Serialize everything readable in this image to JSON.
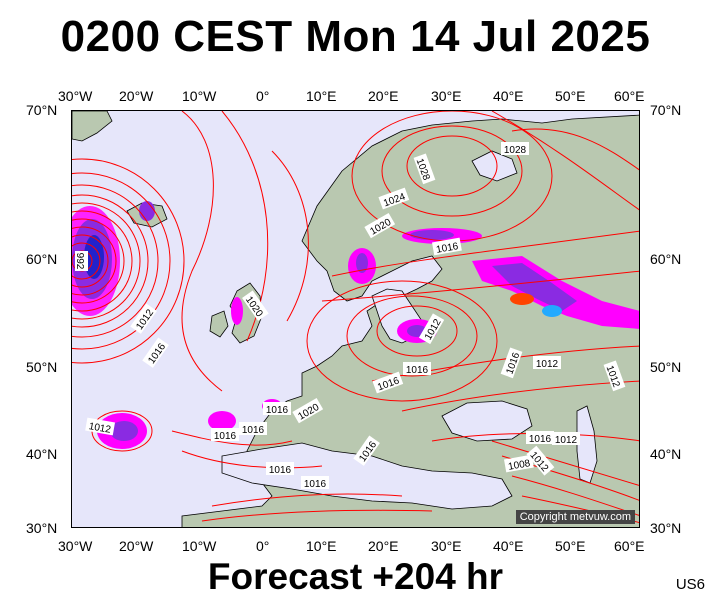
{
  "title": "0200 CEST Mon 14 Jul 2025",
  "footer": "Forecast +204 hr",
  "model_code": "US6",
  "copyright": "Copyright metvuw.com",
  "colors": {
    "sea": "#e6e6fa",
    "land": "#b9c8b0",
    "isobar": "#ff0000",
    "coast": "#000000",
    "rain_light": "#ff00ff",
    "rain_mid": "#8a2be2",
    "rain_heavy": "#2222cc"
  },
  "axes": {
    "lon_labels": [
      "30°W",
      "20°W",
      "10°W",
      "0°",
      "10°E",
      "20°E",
      "30°E",
      "40°E",
      "50°E",
      "60°E"
    ],
    "lat_labels": [
      "70°N",
      "60°N",
      "50°N",
      "40°N",
      "30°N"
    ]
  },
  "isobar_labels": [
    {
      "text": "1028"
    },
    {
      "text": "1028"
    },
    {
      "text": "1024"
    },
    {
      "text": "1020"
    },
    {
      "text": "1016"
    },
    {
      "text": "992"
    },
    {
      "text": "1012"
    },
    {
      "text": "1016"
    },
    {
      "text": "1020"
    },
    {
      "text": "1012"
    },
    {
      "text": "1016"
    },
    {
      "text": "1016"
    },
    {
      "text": "1012"
    },
    {
      "text": "1016"
    },
    {
      "text": "1012"
    },
    {
      "text": "1016"
    },
    {
      "text": "1020"
    },
    {
      "text": "1016"
    },
    {
      "text": "1016"
    },
    {
      "text": "1016"
    },
    {
      "text": "1012"
    },
    {
      "text": "1016"
    },
    {
      "text": "1016"
    },
    {
      "text": "1012"
    },
    {
      "text": "1008"
    },
    {
      "text": "1012"
    },
    {
      "text": "1016"
    }
  ]
}
